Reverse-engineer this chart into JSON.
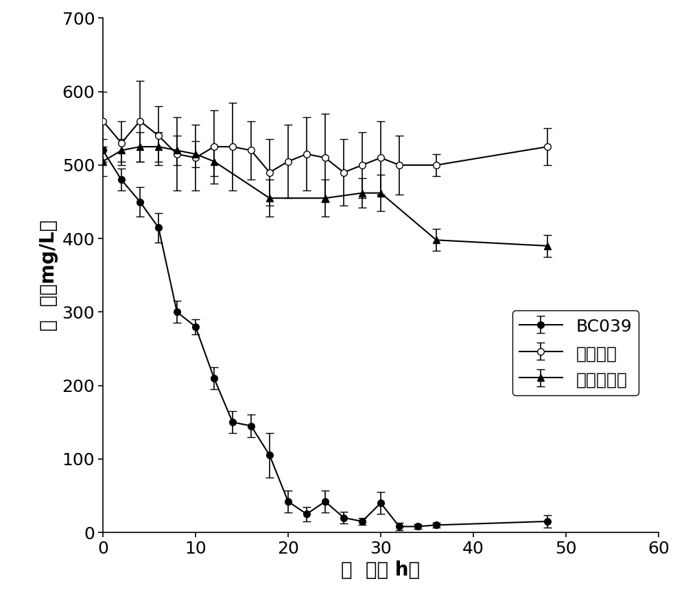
{
  "title": "",
  "xlabel": "时　间（　h）",
  "ylabel": "咋　唠（mg/L）",
  "xlim": [
    0,
    60
  ],
  "ylim": [
    0,
    700
  ],
  "xticks": [
    0,
    10,
    20,
    30,
    40,
    50,
    60
  ],
  "yticks": [
    0,
    100,
    200,
    300,
    400,
    500,
    600,
    700
  ],
  "bc039_x": [
    0,
    2,
    4,
    6,
    8,
    10,
    12,
    14,
    16,
    18,
    20,
    22,
    24,
    26,
    28,
    30,
    32,
    34,
    36,
    48
  ],
  "bc039_y": [
    520,
    480,
    450,
    415,
    300,
    280,
    210,
    150,
    145,
    105,
    42,
    25,
    42,
    20,
    15,
    40,
    8,
    8,
    10,
    15
  ],
  "bc039_yerr": [
    15,
    15,
    20,
    20,
    15,
    10,
    15,
    15,
    15,
    30,
    15,
    10,
    15,
    8,
    5,
    15,
    5,
    3,
    3,
    8
  ],
  "blank_x": [
    0,
    2,
    4,
    6,
    8,
    10,
    12,
    14,
    16,
    18,
    20,
    22,
    24,
    26,
    28,
    30,
    32,
    36,
    48
  ],
  "blank_y": [
    560,
    530,
    560,
    540,
    515,
    510,
    525,
    525,
    520,
    490,
    505,
    515,
    510,
    490,
    500,
    510,
    500,
    500,
    525
  ],
  "blank_yerr": [
    40,
    30,
    55,
    40,
    50,
    45,
    50,
    60,
    40,
    45,
    50,
    50,
    60,
    45,
    45,
    50,
    40,
    15,
    25
  ],
  "dead_x": [
    0,
    2,
    4,
    6,
    8,
    10,
    12,
    18,
    24,
    28,
    30,
    36,
    48
  ],
  "dead_y": [
    505,
    520,
    525,
    525,
    520,
    515,
    505,
    455,
    455,
    462,
    462,
    398,
    390
  ],
  "dead_yerr": [
    20,
    15,
    20,
    20,
    20,
    18,
    20,
    25,
    25,
    20,
    25,
    15,
    15
  ],
  "line_color": "#000000",
  "legend_labels": [
    "BC039",
    "空白对照",
    "死细胞对照"
  ],
  "fontsize_label": 20,
  "fontsize_tick": 18,
  "fontsize_legend": 18,
  "background_color": "#ffffff"
}
